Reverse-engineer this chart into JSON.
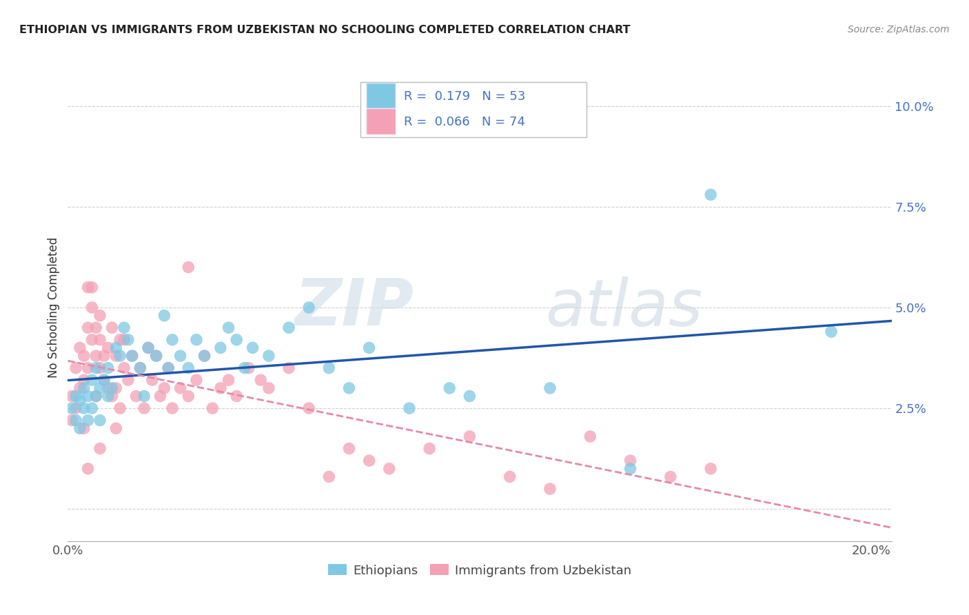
{
  "title": "ETHIOPIAN VS IMMIGRANTS FROM UZBEKISTAN NO SCHOOLING COMPLETED CORRELATION CHART",
  "source": "Source: ZipAtlas.com",
  "ylabel": "No Schooling Completed",
  "xlim": [
    0.0,
    0.205
  ],
  "ylim": [
    -0.008,
    0.108
  ],
  "x_ticks": [
    0.0,
    0.05,
    0.1,
    0.15,
    0.2
  ],
  "x_tick_labels": [
    "0.0%",
    "",
    "",
    "",
    "20.0%"
  ],
  "y_ticks": [
    0.0,
    0.025,
    0.05,
    0.075,
    0.1
  ],
  "y_tick_labels": [
    "",
    "2.5%",
    "5.0%",
    "7.5%",
    "10.0%"
  ],
  "background_color": "#ffffff",
  "grid_color": "#d0d0d0",
  "watermark_zip": "ZIP",
  "watermark_atlas": "atlas",
  "blue_color": "#7ec8e3",
  "pink_color": "#f4a0b5",
  "blue_line_color": "#2255aa",
  "pink_line_color": "#e888a8",
  "blue_legend_color": "#4472c4",
  "pink_legend_color": "#e05585",
  "ethiopians_x": [
    0.001,
    0.002,
    0.002,
    0.003,
    0.003,
    0.004,
    0.004,
    0.005,
    0.005,
    0.006,
    0.006,
    0.007,
    0.007,
    0.008,
    0.008,
    0.009,
    0.01,
    0.01,
    0.011,
    0.012,
    0.013,
    0.014,
    0.015,
    0.016,
    0.018,
    0.019,
    0.02,
    0.022,
    0.024,
    0.025,
    0.026,
    0.028,
    0.03,
    0.032,
    0.034,
    0.038,
    0.04,
    0.042,
    0.044,
    0.046,
    0.05,
    0.055,
    0.06,
    0.065,
    0.07,
    0.075,
    0.085,
    0.095,
    0.1,
    0.12,
    0.14,
    0.16,
    0.19
  ],
  "ethiopians_y": [
    0.025,
    0.022,
    0.028,
    0.027,
    0.02,
    0.025,
    0.03,
    0.028,
    0.022,
    0.032,
    0.025,
    0.035,
    0.028,
    0.03,
    0.022,
    0.032,
    0.035,
    0.028,
    0.03,
    0.04,
    0.038,
    0.045,
    0.042,
    0.038,
    0.035,
    0.028,
    0.04,
    0.038,
    0.048,
    0.035,
    0.042,
    0.038,
    0.035,
    0.042,
    0.038,
    0.04,
    0.045,
    0.042,
    0.035,
    0.04,
    0.038,
    0.045,
    0.05,
    0.035,
    0.03,
    0.04,
    0.025,
    0.03,
    0.028,
    0.03,
    0.01,
    0.078,
    0.044
  ],
  "uzbekistan_x": [
    0.001,
    0.001,
    0.002,
    0.002,
    0.003,
    0.003,
    0.004,
    0.004,
    0.004,
    0.005,
    0.005,
    0.005,
    0.006,
    0.006,
    0.006,
    0.007,
    0.007,
    0.007,
    0.008,
    0.008,
    0.008,
    0.009,
    0.009,
    0.01,
    0.01,
    0.011,
    0.011,
    0.012,
    0.012,
    0.013,
    0.013,
    0.014,
    0.014,
    0.015,
    0.016,
    0.017,
    0.018,
    0.019,
    0.02,
    0.021,
    0.022,
    0.023,
    0.024,
    0.025,
    0.026,
    0.028,
    0.03,
    0.032,
    0.034,
    0.036,
    0.038,
    0.04,
    0.042,
    0.045,
    0.048,
    0.05,
    0.055,
    0.06,
    0.065,
    0.07,
    0.075,
    0.08,
    0.09,
    0.1,
    0.11,
    0.12,
    0.13,
    0.14,
    0.15,
    0.16,
    0.03,
    0.005,
    0.008,
    0.012
  ],
  "uzbekistan_y": [
    0.022,
    0.028,
    0.025,
    0.035,
    0.03,
    0.04,
    0.032,
    0.038,
    0.02,
    0.055,
    0.045,
    0.035,
    0.05,
    0.042,
    0.055,
    0.045,
    0.038,
    0.028,
    0.048,
    0.035,
    0.042,
    0.032,
    0.038,
    0.04,
    0.03,
    0.045,
    0.028,
    0.038,
    0.03,
    0.042,
    0.025,
    0.035,
    0.042,
    0.032,
    0.038,
    0.028,
    0.035,
    0.025,
    0.04,
    0.032,
    0.038,
    0.028,
    0.03,
    0.035,
    0.025,
    0.03,
    0.028,
    0.032,
    0.038,
    0.025,
    0.03,
    0.032,
    0.028,
    0.035,
    0.032,
    0.03,
    0.035,
    0.025,
    0.008,
    0.015,
    0.012,
    0.01,
    0.015,
    0.018,
    0.008,
    0.005,
    0.018,
    0.012,
    0.008,
    0.01,
    0.06,
    0.01,
    0.015,
    0.02
  ]
}
